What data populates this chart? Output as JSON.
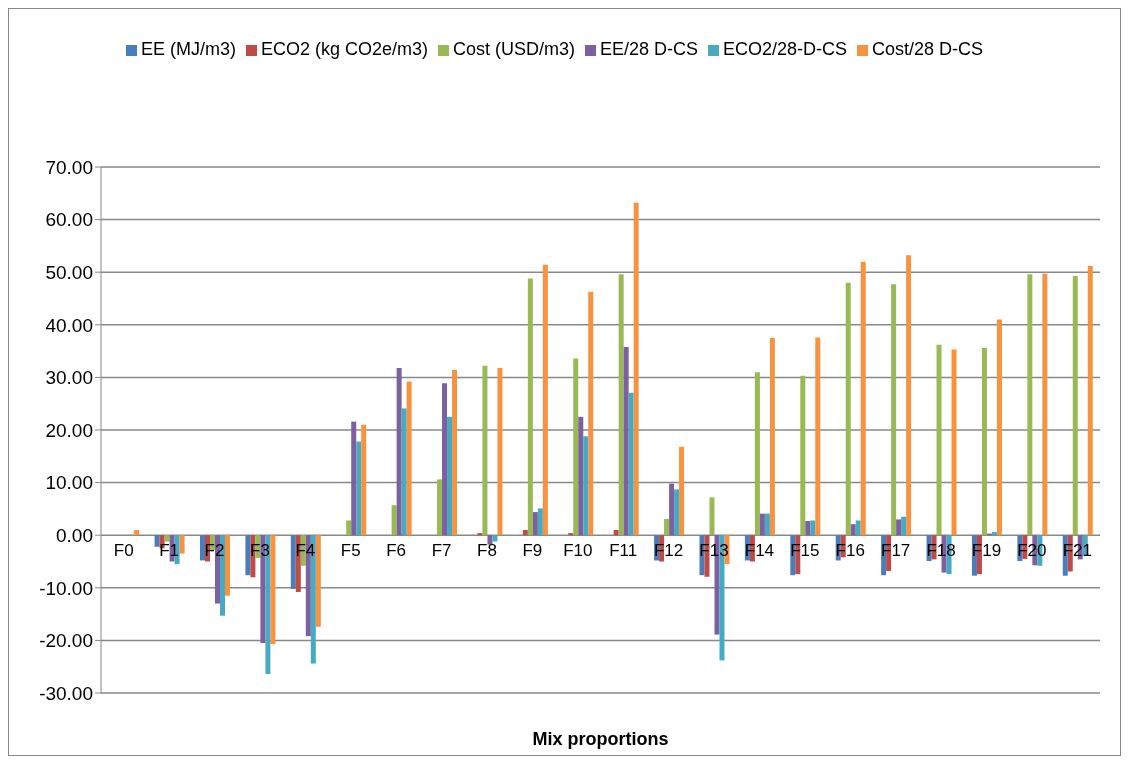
{
  "chart_data": {
    "type": "bar",
    "xlabel": "Mix proportions",
    "categories": [
      "F0",
      "F1",
      "F2",
      "F3",
      "F4",
      "F5",
      "F6",
      "F7",
      "F8",
      "F9",
      "F10",
      "F11",
      "F12",
      "F13",
      "F14",
      "F15",
      "F16",
      "F17",
      "F18",
      "F19",
      "F20",
      "F21"
    ],
    "series": [
      {
        "name": "EE (MJ/m3)",
        "color": "#4a7ebb",
        "values": [
          0,
          -2.2,
          -4.8,
          -7.6,
          -10.2,
          0,
          0,
          0,
          0,
          0,
          0,
          0,
          -4.8,
          -7.6,
          -4.8,
          -7.6,
          -4.8,
          -7.6,
          -4.9,
          -7.7,
          -4.9,
          -7.7
        ]
      },
      {
        "name": "ECO2 (kg CO2e/m3)",
        "color": "#be4b48",
        "values": [
          0,
          -2.5,
          -5.0,
          -8.0,
          -10.8,
          0,
          0,
          0,
          0.4,
          1.0,
          0.4,
          1.0,
          -5.0,
          -7.9,
          -5.0,
          -7.4,
          -4.2,
          -6.8,
          -4.6,
          -7.4,
          -4.5,
          -6.9
        ]
      },
      {
        "name": "Cost (USD/m3)",
        "color": "#98b954",
        "values": [
          0,
          -1.2,
          -2.8,
          -4.3,
          -5.8,
          2.8,
          5.7,
          10.6,
          32.2,
          48.8,
          33.6,
          49.6,
          3.1,
          7.2,
          31.0,
          30.3,
          48.0,
          47.7,
          36.2,
          35.6,
          49.6,
          49.3
        ]
      },
      {
        "name": "EE/28 D-CS",
        "color": "#7d60a0",
        "values": [
          0,
          -5.0,
          -13.0,
          -20.5,
          -19.2,
          21.6,
          31.8,
          28.9,
          -1.8,
          4.4,
          22.5,
          35.8,
          9.8,
          -18.9,
          4.1,
          2.7,
          2.1,
          3.0,
          -7.1,
          0.3,
          -5.7,
          -4.6
        ]
      },
      {
        "name": "ECO2/28-D-CS",
        "color": "#46aac5",
        "values": [
          0,
          -5.5,
          -15.3,
          -26.4,
          -24.4,
          17.8,
          24.1,
          22.5,
          -1.2,
          5.1,
          18.8,
          27.1,
          8.7,
          -23.8,
          4.1,
          2.8,
          2.8,
          3.5,
          -7.4,
          0.6,
          -5.8,
          -3.9
        ]
      },
      {
        "name": "Cost/28 D-CS",
        "color": "#f69240",
        "values": [
          1.0,
          -3.5,
          -11.5,
          -20.7,
          -17.4,
          21.0,
          29.2,
          31.4,
          31.8,
          51.4,
          46.3,
          63.2,
          16.8,
          -5.5,
          37.5,
          37.6,
          52.0,
          53.2,
          35.3,
          41.0,
          49.7,
          51.2
        ]
      }
    ],
    "ylim": [
      -30,
      70
    ],
    "yticks": [
      {
        "value": -30,
        "label": "-30.00"
      },
      {
        "value": -20,
        "label": "-20.00"
      },
      {
        "value": -10,
        "label": "-10.00"
      },
      {
        "value": 0,
        "label": "0.00"
      },
      {
        "value": 10,
        "label": "10.00"
      },
      {
        "value": 20,
        "label": "20.00"
      },
      {
        "value": 30,
        "label": "30.00"
      },
      {
        "value": 40,
        "label": "40.00"
      },
      {
        "value": 50,
        "label": "50.00"
      },
      {
        "value": 60,
        "label": "60.00"
      },
      {
        "value": 70,
        "label": "70.00"
      }
    ],
    "grid": "y",
    "legend": "top"
  }
}
